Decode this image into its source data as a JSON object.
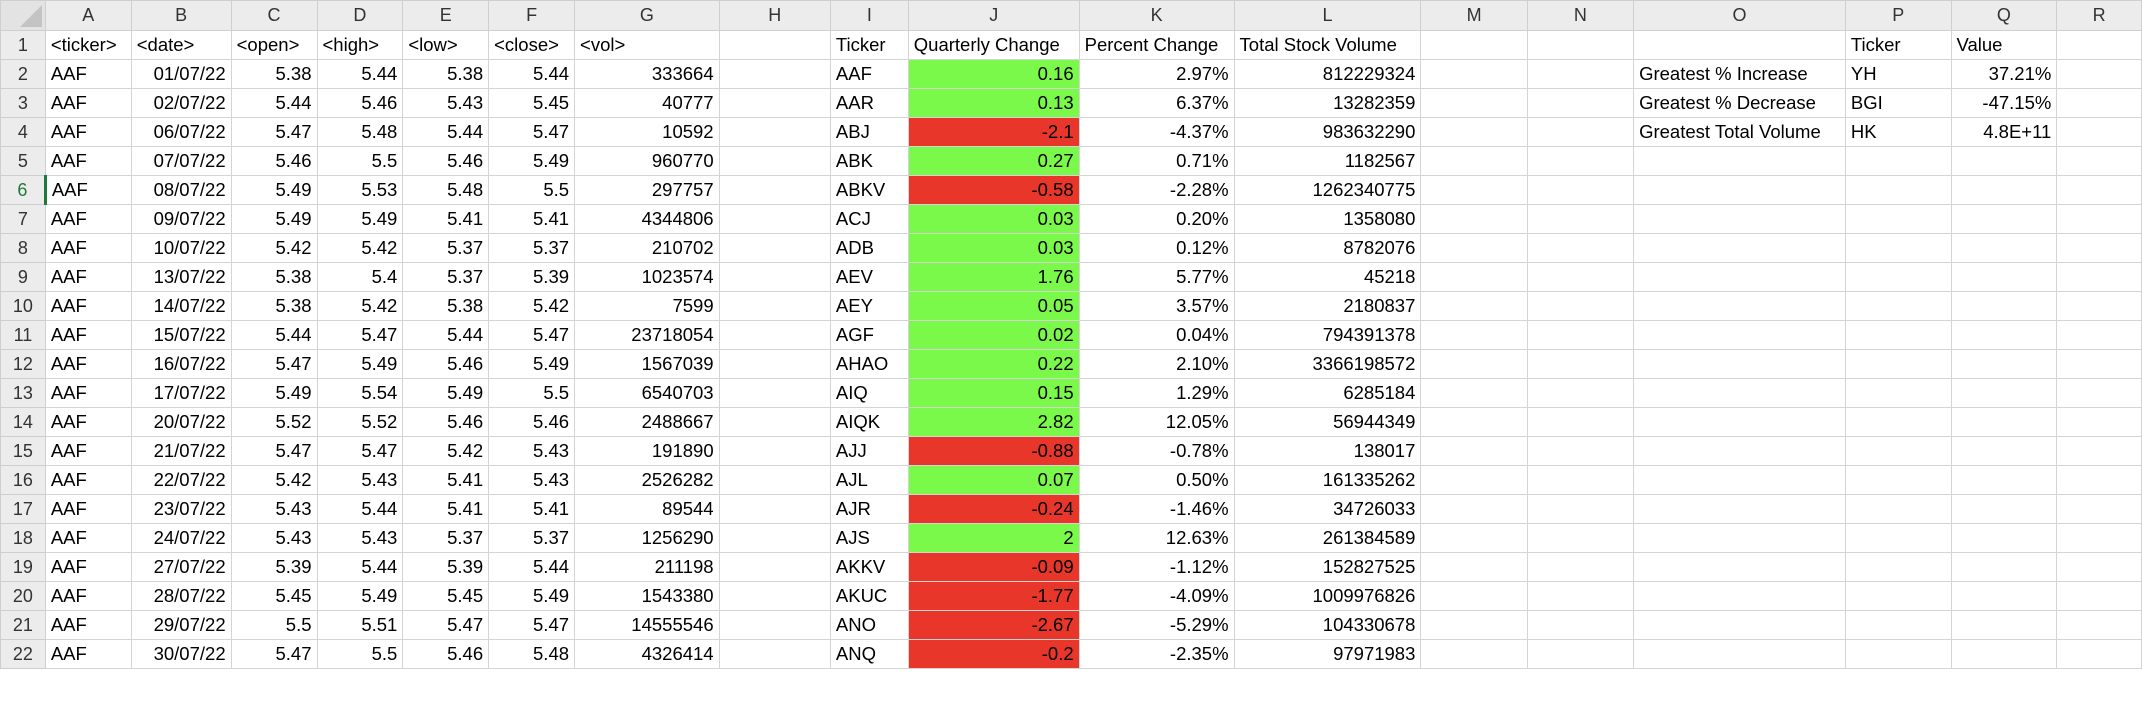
{
  "columns": [
    "A",
    "B",
    "C",
    "D",
    "E",
    "F",
    "G",
    "H",
    "I",
    "J",
    "K",
    "L",
    "M",
    "N",
    "O",
    "P",
    "Q",
    "R"
  ],
  "row_numbers": [
    "1",
    "2",
    "3",
    "4",
    "5",
    "6",
    "7",
    "8",
    "9",
    "10",
    "11",
    "12",
    "13",
    "14",
    "15",
    "16",
    "17",
    "18",
    "19",
    "20",
    "21",
    "22"
  ],
  "active_row": "6",
  "headers": {
    "ticker": "<ticker>",
    "date": "<date>",
    "open": "<open>",
    "high": "<high>",
    "low": "<low>",
    "close": "<close>",
    "vol": "<vol>",
    "sum_ticker": "Ticker",
    "quarterly_change": "Quarterly Change",
    "percent_change": "Percent Change",
    "total_volume": "Total Stock Volume",
    "greatest_ticker": "Ticker",
    "greatest_value": "Value"
  },
  "raw_rows": [
    {
      "ticker": "AAF",
      "date": "01/07/22",
      "open": "5.38",
      "high": "5.44",
      "low": "5.38",
      "close": "5.44",
      "vol": "333664"
    },
    {
      "ticker": "AAF",
      "date": "02/07/22",
      "open": "5.44",
      "high": "5.46",
      "low": "5.43",
      "close": "5.45",
      "vol": "40777"
    },
    {
      "ticker": "AAF",
      "date": "06/07/22",
      "open": "5.47",
      "high": "5.48",
      "low": "5.44",
      "close": "5.47",
      "vol": "10592"
    },
    {
      "ticker": "AAF",
      "date": "07/07/22",
      "open": "5.46",
      "high": "5.5",
      "low": "5.46",
      "close": "5.49",
      "vol": "960770"
    },
    {
      "ticker": "AAF",
      "date": "08/07/22",
      "open": "5.49",
      "high": "5.53",
      "low": "5.48",
      "close": "5.5",
      "vol": "297757"
    },
    {
      "ticker": "AAF",
      "date": "09/07/22",
      "open": "5.49",
      "high": "5.49",
      "low": "5.41",
      "close": "5.41",
      "vol": "4344806"
    },
    {
      "ticker": "AAF",
      "date": "10/07/22",
      "open": "5.42",
      "high": "5.42",
      "low": "5.37",
      "close": "5.37",
      "vol": "210702"
    },
    {
      "ticker": "AAF",
      "date": "13/07/22",
      "open": "5.38",
      "high": "5.4",
      "low": "5.37",
      "close": "5.39",
      "vol": "1023574"
    },
    {
      "ticker": "AAF",
      "date": "14/07/22",
      "open": "5.38",
      "high": "5.42",
      "low": "5.38",
      "close": "5.42",
      "vol": "7599"
    },
    {
      "ticker": "AAF",
      "date": "15/07/22",
      "open": "5.44",
      "high": "5.47",
      "low": "5.44",
      "close": "5.47",
      "vol": "23718054"
    },
    {
      "ticker": "AAF",
      "date": "16/07/22",
      "open": "5.47",
      "high": "5.49",
      "low": "5.46",
      "close": "5.49",
      "vol": "1567039"
    },
    {
      "ticker": "AAF",
      "date": "17/07/22",
      "open": "5.49",
      "high": "5.54",
      "low": "5.49",
      "close": "5.5",
      "vol": "6540703"
    },
    {
      "ticker": "AAF",
      "date": "20/07/22",
      "open": "5.52",
      "high": "5.52",
      "low": "5.46",
      "close": "5.46",
      "vol": "2488667"
    },
    {
      "ticker": "AAF",
      "date": "21/07/22",
      "open": "5.47",
      "high": "5.47",
      "low": "5.42",
      "close": "5.43",
      "vol": "191890"
    },
    {
      "ticker": "AAF",
      "date": "22/07/22",
      "open": "5.42",
      "high": "5.43",
      "low": "5.41",
      "close": "5.43",
      "vol": "2526282"
    },
    {
      "ticker": "AAF",
      "date": "23/07/22",
      "open": "5.43",
      "high": "5.44",
      "low": "5.41",
      "close": "5.41",
      "vol": "89544"
    },
    {
      "ticker": "AAF",
      "date": "24/07/22",
      "open": "5.43",
      "high": "5.43",
      "low": "5.37",
      "close": "5.37",
      "vol": "1256290"
    },
    {
      "ticker": "AAF",
      "date": "27/07/22",
      "open": "5.39",
      "high": "5.44",
      "low": "5.39",
      "close": "5.44",
      "vol": "211198"
    },
    {
      "ticker": "AAF",
      "date": "28/07/22",
      "open": "5.45",
      "high": "5.49",
      "low": "5.45",
      "close": "5.49",
      "vol": "1543380"
    },
    {
      "ticker": "AAF",
      "date": "29/07/22",
      "open": "5.5",
      "high": "5.51",
      "low": "5.47",
      "close": "5.47",
      "vol": "14555546"
    },
    {
      "ticker": "AAF",
      "date": "30/07/22",
      "open": "5.47",
      "high": "5.5",
      "low": "5.46",
      "close": "5.48",
      "vol": "4326414"
    }
  ],
  "summary_rows": [
    {
      "ticker": "AAF",
      "change": "0.16",
      "pct": "2.97%",
      "volume": "812229324"
    },
    {
      "ticker": "AAR",
      "change": "0.13",
      "pct": "6.37%",
      "volume": "13282359"
    },
    {
      "ticker": "ABJ",
      "change": "-2.1",
      "pct": "-4.37%",
      "volume": "983632290"
    },
    {
      "ticker": "ABK",
      "change": "0.27",
      "pct": "0.71%",
      "volume": "1182567"
    },
    {
      "ticker": "ABKV",
      "change": "-0.58",
      "pct": "-2.28%",
      "volume": "1262340775"
    },
    {
      "ticker": "ACJ",
      "change": "0.03",
      "pct": "0.20%",
      "volume": "1358080"
    },
    {
      "ticker": "ADB",
      "change": "0.03",
      "pct": "0.12%",
      "volume": "8782076"
    },
    {
      "ticker": "AEV",
      "change": "1.76",
      "pct": "5.77%",
      "volume": "45218"
    },
    {
      "ticker": "AEY",
      "change": "0.05",
      "pct": "3.57%",
      "volume": "2180837"
    },
    {
      "ticker": "AGF",
      "change": "0.02",
      "pct": "0.04%",
      "volume": "794391378"
    },
    {
      "ticker": "AHAO",
      "change": "0.22",
      "pct": "2.10%",
      "volume": "3366198572"
    },
    {
      "ticker": "AIQ",
      "change": "0.15",
      "pct": "1.29%",
      "volume": "6285184"
    },
    {
      "ticker": "AIQK",
      "change": "2.82",
      "pct": "12.05%",
      "volume": "56944349"
    },
    {
      "ticker": "AJJ",
      "change": "-0.88",
      "pct": "-0.78%",
      "volume": "138017"
    },
    {
      "ticker": "AJL",
      "change": "0.07",
      "pct": "0.50%",
      "volume": "161335262"
    },
    {
      "ticker": "AJR",
      "change": "-0.24",
      "pct": "-1.46%",
      "volume": "34726033"
    },
    {
      "ticker": "AJS",
      "change": "2",
      "pct": "12.63%",
      "volume": "261384589"
    },
    {
      "ticker": "AKKV",
      "change": "-0.09",
      "pct": "-1.12%",
      "volume": "152827525"
    },
    {
      "ticker": "AKUC",
      "change": "-1.77",
      "pct": "-4.09%",
      "volume": "1009976826"
    },
    {
      "ticker": "ANO",
      "change": "-2.67",
      "pct": "-5.29%",
      "volume": "104330678"
    },
    {
      "ticker": "ANQ",
      "change": "-0.2",
      "pct": "-2.35%",
      "volume": "97971983"
    }
  ],
  "greatest": [
    {
      "label": "Greatest % Increase",
      "ticker": "YH",
      "value": "37.21%"
    },
    {
      "label": "Greatest % Decrease",
      "ticker": "BGI",
      "value": "-47.15%"
    },
    {
      "label": "Greatest Total Volume",
      "ticker": "HK",
      "value": "4.8E+11"
    }
  ],
  "colors": {
    "positive": "#7bf94a",
    "negative": "#e8372a",
    "header_bg": "#ececec",
    "gridline": "#d4d4d4",
    "active_row_accent": "#1f7a3a"
  }
}
